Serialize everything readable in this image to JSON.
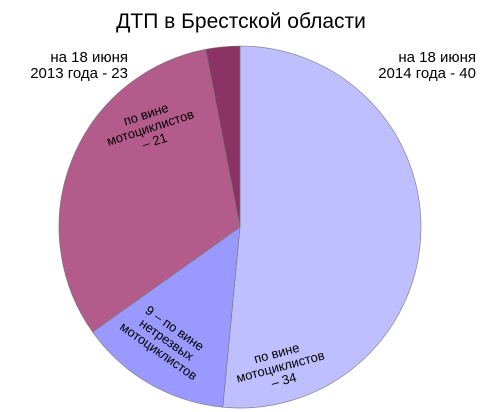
{
  "chart_data": {
    "type": "pie",
    "title": "ДТП в Брестской области",
    "labels": [
      "по вине\nмотоциклистов\n– 34",
      "9 – по вине\nнетрезвых\nмотоциклистов",
      "по вине\nмотоциклистов\n– 21",
      null
    ],
    "values": [
      34,
      9,
      21,
      2
    ],
    "colors": [
      "#bfbfff",
      "#9999ff",
      "#b35c8c",
      "#8c3366"
    ],
    "annotations": [
      "на 18 июня\n2013 года - 23",
      "на 18 июня\n2014 года - 40"
    ]
  }
}
